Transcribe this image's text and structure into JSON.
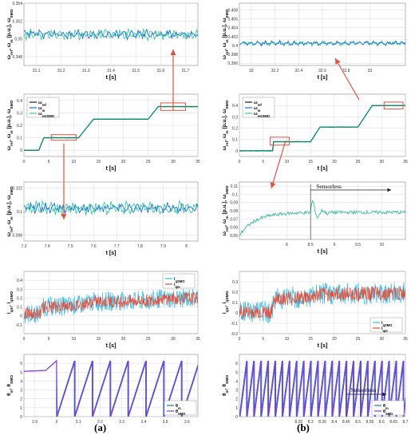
{
  "colors": {
    "ref": "#1a1a1a",
    "omega_m": "#1f6fd6",
    "omega_smo": "#2fd3a0",
    "zoom_green": "#3bbf8f",
    "iq_smo": "#39c0ea",
    "iq_m": "#ef4a32",
    "theta_m": "#1f6fd6",
    "theta_smo": "#8a3ad6",
    "arrow": "#e6503f",
    "grid": "#d9d9d9"
  },
  "captions": {
    "a": "(a)",
    "b": "(b)"
  },
  "chart_data": [
    {
      "id": "a1",
      "type": "line",
      "xlabel": "t [s]",
      "ylabel": "ω_ref, ω_m [p.u.], ω_SMO",
      "xlim": [
        31.05,
        31.75
      ],
      "ylim": [
        0.347,
        0.354
      ],
      "xticks": [
        "31.1",
        "31.2",
        "31.3",
        "31.4",
        "31.5",
        "31.6",
        "31.7"
      ],
      "yticks": [
        "0.354",
        "0.352",
        "0.35",
        "0.348"
      ],
      "series": [
        {
          "key": "omega_smo",
          "noise": 0.0006,
          "level": 0.3505
        },
        {
          "key": "omega_m",
          "noise": 0.0005,
          "level": 0.3505
        }
      ]
    },
    {
      "id": "a2",
      "type": "line",
      "xlabel": "t [s]",
      "ylabel": "ω_ref, ω_m [p.u.], ω_SMO",
      "xlim": [
        0,
        35
      ],
      "ylim": [
        -0.05,
        0.45
      ],
      "xticks": [
        "0",
        "5",
        "10",
        "15",
        "20",
        "25",
        "30",
        "35"
      ],
      "yticks": [
        "0.4",
        "0.3",
        "0.2",
        "0.1",
        "0"
      ],
      "legend": [
        "ω_ref",
        "ω_m",
        "ω_estSMO"
      ],
      "steps": [
        [
          0,
          0
        ],
        [
          3,
          0
        ],
        [
          4,
          0.1
        ],
        [
          11,
          0.1
        ],
        [
          14,
          0.25
        ],
        [
          25,
          0.25
        ],
        [
          27,
          0.35
        ],
        [
          35,
          0.35
        ]
      ],
      "zoom_boxes": [
        {
          "x": [
            5.5,
            10.5
          ],
          "y": [
            0.08,
            0.125
          ]
        },
        {
          "x": [
            27.5,
            32.5
          ],
          "y": [
            0.32,
            0.38
          ]
        }
      ]
    },
    {
      "id": "a3",
      "type": "line",
      "xlabel": "t [s]",
      "ylabel": "ω_ref, ω_m [p.u.], ω_SMO",
      "xlim": [
        7.3,
        8.05
      ],
      "ylim": [
        0.0975,
        0.1025
      ],
      "xticks": [
        "7.3",
        "7.4",
        "7.5",
        "7.6",
        "7.7",
        "7.8",
        "7.9",
        "8"
      ],
      "yticks": [
        "0.102",
        "0.1",
        "0.098"
      ],
      "series": [
        {
          "key": "omega_smo",
          "noise": 0.0006,
          "level": 0.1003
        },
        {
          "key": "omega_m",
          "noise": 0.0004,
          "level": 0.1003
        }
      ]
    },
    {
      "id": "a4",
      "type": "area",
      "xlabel": "t [s]",
      "ylabel": "i_qm, i_qSMO",
      "xlim": [
        0,
        35
      ],
      "ylim": [
        -0.2,
        0.5
      ],
      "xticks": [
        "0",
        "5",
        "10",
        "15",
        "20",
        "25",
        "30",
        "35"
      ],
      "yticks": [
        "0.4",
        "0.3",
        "0.2",
        "0.1",
        "0",
        "-0.1"
      ],
      "legend": [
        "i_qSMO",
        "i_qm"
      ],
      "levels": [
        [
          0,
          0.02
        ],
        [
          3,
          0.02
        ],
        [
          4,
          0.1
        ],
        [
          11,
          0.12
        ],
        [
          14,
          0.16
        ],
        [
          25,
          0.17
        ],
        [
          27,
          0.19
        ],
        [
          35,
          0.2
        ]
      ]
    },
    {
      "id": "a5",
      "type": "line",
      "xlabel": "",
      "ylabel": "θ_m, θ_SMO",
      "xlim": [
        2.85,
        3.65
      ],
      "ylim": [
        0,
        7
      ],
      "xticks": [
        "2.9",
        "3",
        "3.1",
        "3.2",
        "3.3",
        "3.4",
        "3.5",
        "3.6"
      ],
      "yticks": [
        "6",
        "5",
        "4",
        "3",
        "2",
        "1",
        "0"
      ],
      "legend": [
        "θ_m",
        "θ_SMO"
      ]
    },
    {
      "id": "b1",
      "type": "line",
      "xlabel": "t [s]",
      "ylabel": "ω_ref, ω_m [p.u.], ω_SMO",
      "xlim": [
        31.9,
        33.3
      ],
      "ylim": [
        0.3955,
        0.4095
      ],
      "xticks": [
        "32",
        "32.2",
        "32.4",
        "32.6",
        "32.8",
        "33"
      ],
      "yticks": [
        "0.408",
        "0.406",
        "0.404",
        "0.402",
        "0.4",
        "0.398",
        "0.396"
      ],
      "series": [
        {
          "key": "omega_smo",
          "noise": 0.0006,
          "level": 0.4005
        },
        {
          "key": "omega_m",
          "noise": 0.0005,
          "level": 0.4005
        }
      ]
    },
    {
      "id": "b2",
      "type": "line",
      "xlabel": "t [s]",
      "ylabel": "ω_ref, ω_m [p.u.], ω_SMO",
      "xlim": [
        0,
        35
      ],
      "ylim": [
        -0.05,
        0.5
      ],
      "xticks": [
        "0",
        "5",
        "10",
        "15",
        "20",
        "25",
        "30",
        "35"
      ],
      "yticks": [
        "0.4",
        "0.3",
        "0.2",
        "0.1",
        "0"
      ],
      "legend": [
        "ω_ref",
        "ω_m",
        "ω_estSMO"
      ],
      "steps": [
        [
          0,
          0
        ],
        [
          7,
          0
        ],
        [
          7.2,
          0.08
        ],
        [
          15,
          0.08
        ],
        [
          17,
          0.21
        ],
        [
          25,
          0.21
        ],
        [
          28,
          0.4
        ],
        [
          35,
          0.4
        ]
      ],
      "zoom_boxes": [
        {
          "x": [
            6.5,
            10.5
          ],
          "y": [
            0.05,
            0.12
          ]
        },
        {
          "x": [
            30.5,
            34.5
          ],
          "y": [
            0.37,
            0.43
          ]
        }
      ]
    },
    {
      "id": "b3",
      "type": "line",
      "xlabel": "t [s]",
      "ylabel": "ω_ref, ω_m [p.u.], ω_SMO",
      "xlim": [
        7,
        10.5
      ],
      "ylim": [
        0.045,
        0.115
      ],
      "xticks": [
        "8",
        "8.5",
        "9",
        "9.5",
        "10"
      ],
      "yticks": [
        "0.11",
        "0.1",
        "0.09",
        "0.08",
        "0.07",
        "0.06",
        "0.05"
      ],
      "annotation": "Sensorless"
    },
    {
      "id": "b4",
      "type": "area",
      "xlabel": "t [s]",
      "ylabel": "i_qm, i_qSMO",
      "xlim": [
        0,
        35
      ],
      "ylim": [
        -0.2,
        0.4
      ],
      "xticks": [
        "0",
        "5",
        "10",
        "15",
        "20",
        "25",
        "30",
        "35"
      ],
      "yticks": [
        "0.3",
        "0.2",
        "0.1",
        "0",
        "-0.1",
        "-0.2"
      ],
      "legend": [
        "i_qSMO",
        "i_qm"
      ],
      "levels": [
        [
          0,
          0.01
        ],
        [
          7,
          0.01
        ],
        [
          7.2,
          0.14
        ],
        [
          15,
          0.15
        ],
        [
          17,
          0.18
        ],
        [
          35,
          0.19
        ]
      ]
    },
    {
      "id": "b5",
      "type": "line",
      "xlabel": "",
      "ylabel": "θ_m, θ_SMO",
      "xlim": [
        8.0,
        8.7
      ],
      "ylim": [
        0,
        7
      ],
      "xticks": [
        "8.25",
        "8.3",
        "8.35",
        "8.4",
        "8.45",
        "8.5",
        "8.55",
        "8.6",
        "8.65",
        "8.7"
      ],
      "yticks": [
        "6",
        "5",
        "4",
        "3",
        "2",
        "1",
        "0"
      ],
      "legend": [
        "θ_m",
        "θ_SMO"
      ],
      "annotation": "Sensorless"
    }
  ]
}
